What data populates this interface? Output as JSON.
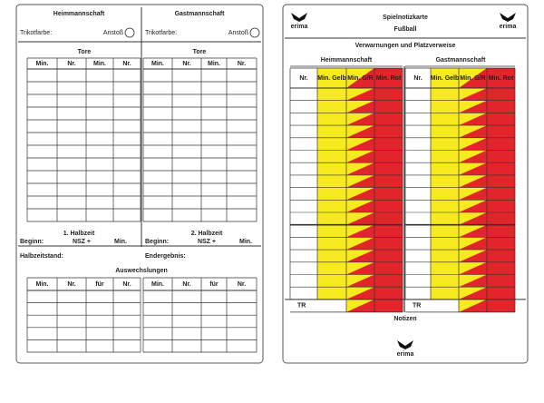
{
  "left_card": {
    "home_team": "Heimmannschaft",
    "away_team": "Gastmannschaft",
    "jersey_label": "Trikotfarbe:",
    "kickoff_label": "Anstoß",
    "goals": {
      "title": "Tore",
      "headers": [
        "Min.",
        "Nr.",
        "Min.",
        "Nr."
      ]
    },
    "first_half": "1. Halbzeit",
    "second_half": "2. Halbzeit",
    "start_label": "Beginn:",
    "nsz_label": "NSZ +",
    "min_label": "Min.",
    "halftime_score": "Halbzeitstand:",
    "final_score": "Endergebnis:",
    "substitutions": {
      "title": "Auswechslungen",
      "headers": [
        "Min.",
        "Nr.",
        "für",
        "Nr."
      ]
    }
  },
  "right_card": {
    "logo": "erima",
    "title": "Spielnotizkarte",
    "subtitle": "Fußball",
    "section": "Verwarnungen und Platzverweise",
    "home_team": "Heimmannschaft",
    "away_team": "Gastmannschaft",
    "headers": [
      "Nr.",
      "Min. Gelb",
      "Min. G/R",
      "Min. Rot"
    ],
    "official_label": "TR",
    "notes": "Notizen"
  }
}
